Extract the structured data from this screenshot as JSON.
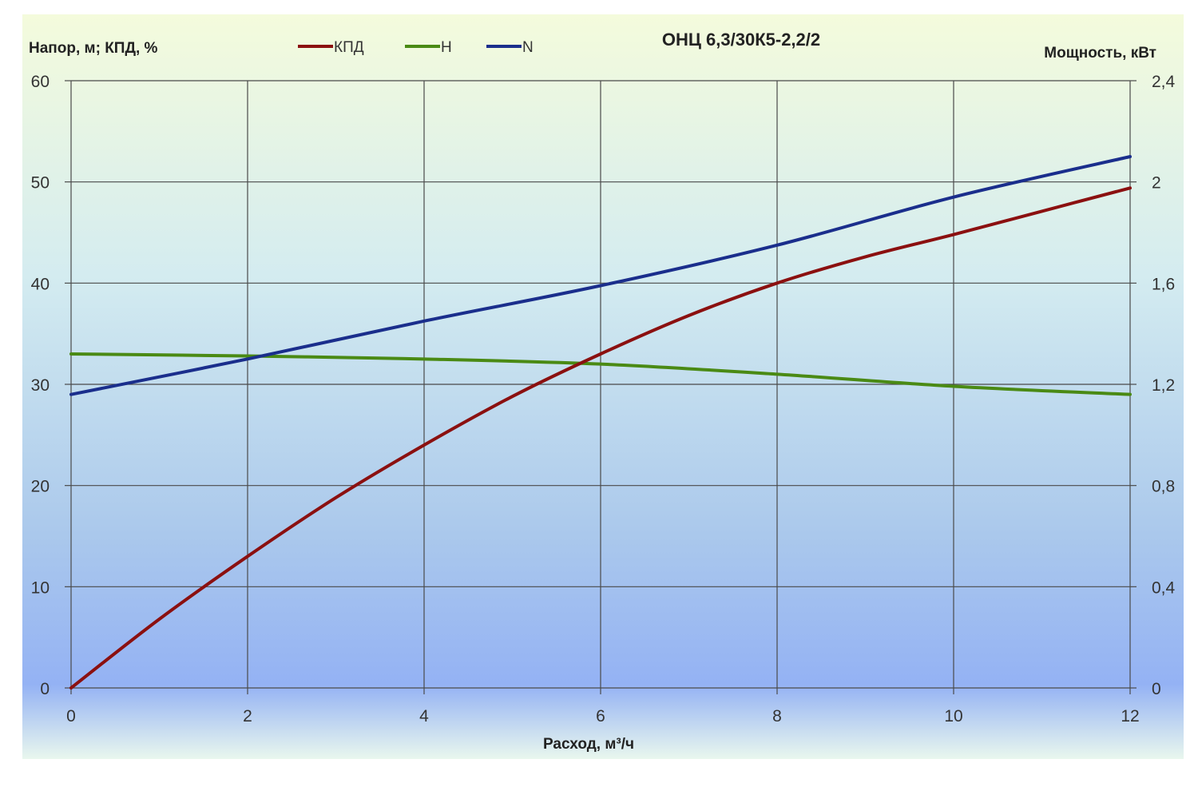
{
  "chart_data": {
    "type": "line",
    "title": "ОНЦ 6,3/30К5-2,2/2",
    "xlabel": "Расход, м³/ч",
    "ylabel_left": "Напор, м; КПД, %",
    "ylabel_right": "Мощность, кВт",
    "xlim": [
      0,
      12
    ],
    "ylim_left": [
      0,
      60
    ],
    "ylim_right": [
      0,
      2.4
    ],
    "x_ticks": [
      "0",
      "2",
      "4",
      "6",
      "8",
      "10",
      "12"
    ],
    "y_left_ticks": [
      "0",
      "10",
      "20",
      "30",
      "40",
      "50",
      "60"
    ],
    "y_right_ticks": [
      "0",
      "0,4",
      "0,8",
      "1,2",
      "1,6",
      "2",
      "2,4"
    ],
    "grid": true,
    "legend_position": "top",
    "series": [
      {
        "name": "КПД",
        "axis": "left",
        "color": "#8b1010",
        "x": [
          0,
          1,
          2,
          3,
          4,
          5,
          6,
          7,
          8,
          9,
          10,
          11,
          12
        ],
        "values": [
          0,
          6.8,
          13,
          18.8,
          24,
          28.8,
          33,
          36.8,
          40,
          42.6,
          44.8,
          47.1,
          49.4
        ]
      },
      {
        "name": "H",
        "axis": "left",
        "color": "#4a8a14",
        "x": [
          0,
          2,
          4,
          6,
          8,
          10,
          12
        ],
        "values": [
          33,
          32.8,
          32.5,
          32,
          31,
          29.8,
          29
        ]
      },
      {
        "name": "N",
        "axis": "right",
        "color": "#1a2e8c",
        "x": [
          0,
          2,
          4,
          6,
          8,
          10,
          12
        ],
        "values": [
          1.16,
          1.3,
          1.45,
          1.59,
          1.75,
          1.94,
          2.1
        ]
      }
    ]
  }
}
